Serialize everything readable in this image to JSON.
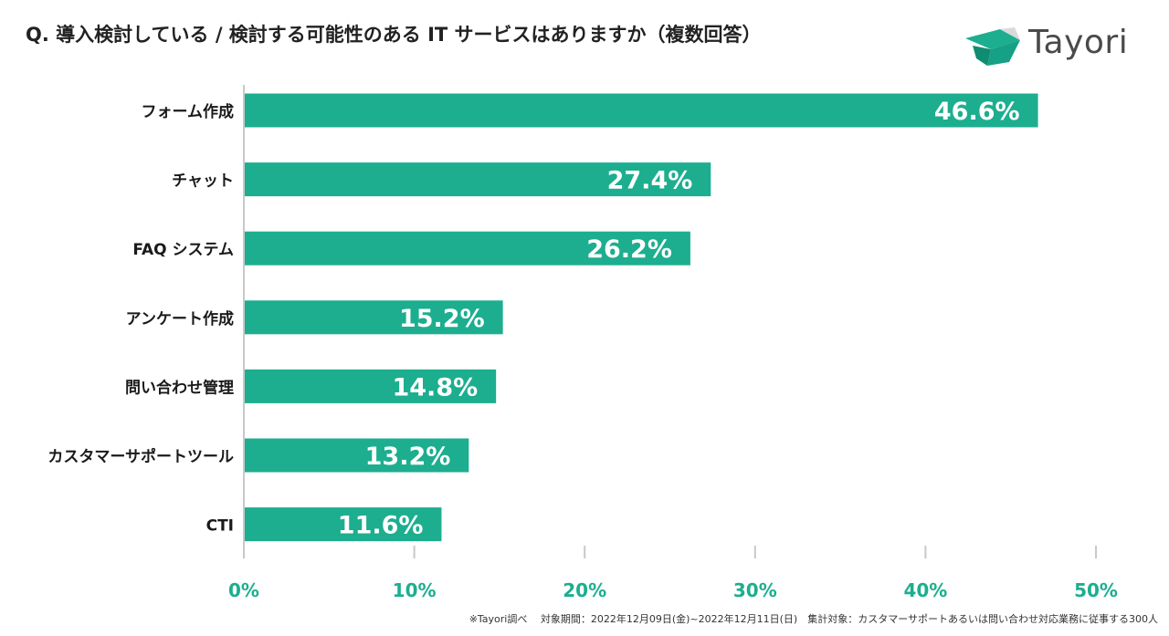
{
  "header": {
    "title": "Q. 導入検討している / 検討する可能性のある IT サービスはありますか（複数回答）",
    "brand": "Tayori"
  },
  "footnote": "※Tayori調べ　 対象期間：2022年12月09日(金)~2022年12月11日(日)　集計対象：カスタマーサポートあるいは問い合わせ対応業務に従事する300人",
  "colors": {
    "bar": "#1cae8f",
    "tick_label": "#1cae8f",
    "axis": "#c8c8c8",
    "logo_dark": "#0f8c72",
    "logo_light": "#1cae8f"
  },
  "chart_data": {
    "type": "bar",
    "orientation": "horizontal",
    "title": "Q. 導入検討している / 検討する可能性のある IT サービスはありますか（複数回答）",
    "categories": [
      "フォーム作成",
      "チャット",
      "FAQ システム",
      "アンケート作成",
      "問い合わせ管理",
      "カスタマーサポートツール",
      "CTI"
    ],
    "values": [
      46.6,
      27.4,
      26.2,
      15.2,
      14.8,
      13.2,
      11.6
    ],
    "data_labels": [
      "46.6%",
      "27.4%",
      "26.2%",
      "15.2%",
      "14.8%",
      "13.2%",
      "11.6%"
    ],
    "xlim": [
      0,
      50
    ],
    "xticks": [
      0,
      10,
      20,
      30,
      40,
      50
    ],
    "xtick_labels": [
      "0%",
      "10%",
      "20%",
      "30%",
      "40%",
      "50%"
    ],
    "xlabel": "",
    "ylabel": "",
    "grid": false,
    "legend": "none"
  }
}
